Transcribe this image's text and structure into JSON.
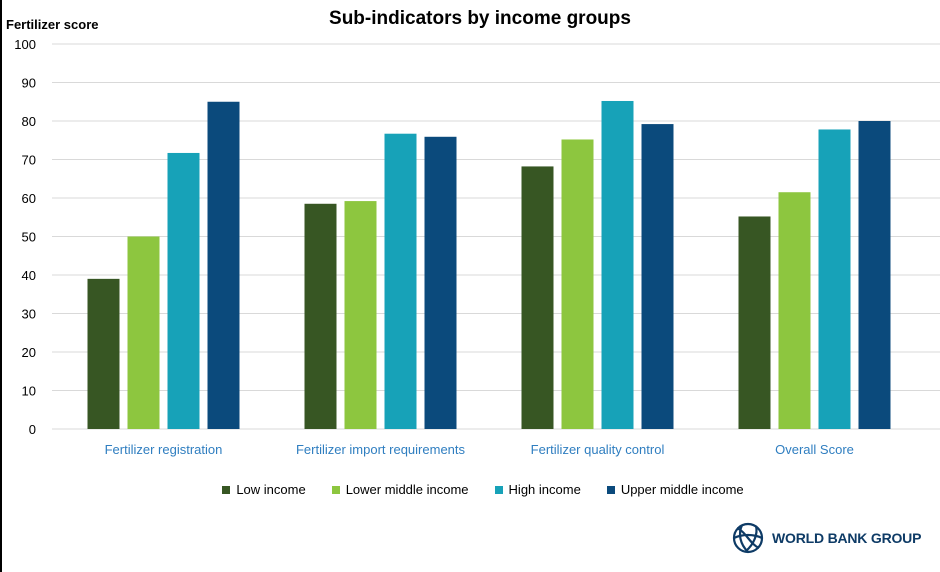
{
  "chart_data": {
    "type": "bar",
    "title": "Sub-indicators by income groups",
    "ylabel": "Fertilizer score",
    "xlabel": "",
    "ylim": [
      0,
      100
    ],
    "yticks": [
      "0",
      "10",
      "20",
      "30",
      "40",
      "50",
      "60",
      "70",
      "80",
      "90",
      "100"
    ],
    "grid": true,
    "legend_position": "bottom",
    "categories": [
      "Fertilizer registration",
      "Fertilizer import requirements",
      "Fertilizer quality control",
      "Overall Score"
    ],
    "series": [
      {
        "name": "Low income",
        "color": "#375623",
        "values": [
          39,
          58.5,
          68.2,
          55.2
        ]
      },
      {
        "name": "Lower middle income",
        "color": "#8dc63f",
        "values": [
          50,
          59.2,
          75.2,
          61.5
        ]
      },
      {
        "name": "High income",
        "color": "#17a2b8",
        "values": [
          71.7,
          76.7,
          85.2,
          77.8
        ]
      },
      {
        "name": "Upper middle income",
        "color": "#0b4a7c",
        "values": [
          85,
          75.9,
          79.2,
          80
        ]
      }
    ]
  },
  "branding": {
    "logo_text": "WORLD BANK GROUP",
    "logo_icon": "globe-icon",
    "logo_color": "#0e3b66"
  },
  "colors": {
    "category_label": "#2f7ec0",
    "gridline": "#d9d9d9"
  }
}
